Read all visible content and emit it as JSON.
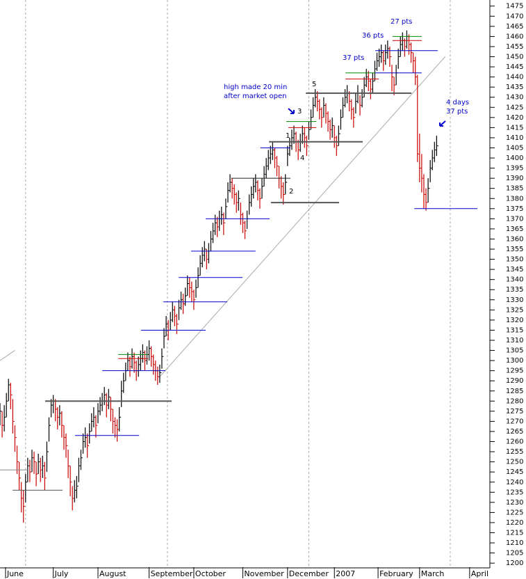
{
  "chart_data": {
    "type": "ohlc",
    "x": [
      0,
      1,
      2,
      3,
      4,
      5,
      6,
      7,
      8,
      9,
      10,
      11,
      12,
      13,
      14,
      15,
      16,
      17,
      18,
      19,
      20,
      21,
      22,
      23,
      24,
      25,
      26,
      27,
      28,
      29,
      30,
      31,
      32,
      33,
      34,
      35,
      36,
      37,
      38,
      39,
      40,
      41,
      42,
      43,
      44,
      45,
      46,
      47,
      48,
      49,
      50,
      51,
      52,
      53,
      54,
      55,
      56,
      57,
      58,
      59,
      60,
      61,
      62,
      63,
      64,
      65,
      66,
      67,
      68,
      69,
      70,
      71,
      72,
      73,
      74,
      75,
      76,
      77,
      78,
      79,
      80,
      81,
      82,
      83,
      84,
      85,
      86,
      87,
      88,
      89,
      90,
      91,
      92,
      93,
      94,
      95,
      96,
      97,
      98,
      99,
      100,
      101,
      102,
      103,
      104,
      105,
      106,
      107,
      108,
      109,
      110,
      111,
      112,
      113,
      114,
      115,
      116,
      117,
      118,
      119,
      120,
      121,
      122,
      123,
      124,
      125,
      126,
      127,
      128,
      129,
      130,
      131,
      132,
      133,
      134,
      135,
      136,
      137,
      138,
      139,
      140,
      141,
      142,
      143,
      144,
      145,
      146,
      147,
      148,
      149,
      150,
      151,
      152,
      153,
      154,
      155,
      156,
      157,
      158,
      159,
      160,
      161,
      162,
      163,
      164,
      165,
      166,
      167,
      168,
      169,
      170,
      171,
      172,
      173,
      174,
      175,
      176,
      177,
      178,
      179,
      180,
      181,
      182,
      183,
      184,
      185,
      186,
      187,
      188,
      189,
      190,
      191,
      192,
      193,
      194,
      195,
      196,
      197,
      198,
      199,
      200,
      201,
      202,
      203,
      204,
      205
    ],
    "high": [
      1279,
      1275,
      1278,
      1284,
      1291,
      1289,
      1281,
      1268,
      1258,
      1250,
      1240,
      1236,
      1244,
      1252,
      1251,
      1256,
      1255,
      1250,
      1254,
      1252,
      1253,
      1250,
      1260,
      1272,
      1281,
      1283,
      1281,
      1277,
      1278,
      1275,
      1268,
      1264,
      1256,
      1248,
      1238,
      1241,
      1243,
      1252,
      1256,
      1264,
      1267,
      1264,
      1269,
      1274,
      1277,
      1273,
      1279,
      1282,
      1284,
      1287,
      1284,
      1286,
      1282,
      1276,
      1272,
      1271,
      1277,
      1290,
      1294,
      1299,
      1304,
      1302,
      1306,
      1304,
      1300,
      1302,
      1305,
      1308,
      1305,
      1307,
      1310,
      1307,
      1303,
      1300,
      1297,
      1298,
      1306,
      1316,
      1322,
      1320,
      1324,
      1329,
      1327,
      1323,
      1330,
      1334,
      1333,
      1336,
      1342,
      1341,
      1339,
      1335,
      1340,
      1346,
      1352,
      1356,
      1359,
      1355,
      1358,
      1364,
      1368,
      1372,
      1371,
      1374,
      1376,
      1373,
      1380,
      1388,
      1392,
      1390,
      1387,
      1383,
      1384,
      1378,
      1373,
      1369,
      1374,
      1382,
      1386,
      1390,
      1392,
      1389,
      1385,
      1390,
      1396,
      1400,
      1404,
      1406,
      1408,
      1405,
      1401,
      1396,
      1391,
      1388,
      1392,
      1406,
      1410,
      1414,
      1416,
      1413,
      1409,
      1412,
      1416,
      1415,
      1411,
      1418,
      1424,
      1430,
      1434,
      1433,
      1429,
      1425,
      1430,
      1427,
      1423,
      1419,
      1420,
      1416,
      1411,
      1416,
      1424,
      1430,
      1434,
      1436,
      1433,
      1429,
      1425,
      1432,
      1436,
      1431,
      1434,
      1440,
      1444,
      1443,
      1439,
      1442,
      1448,
      1452,
      1454,
      1456,
      1453,
      1456,
      1458,
      1455,
      1446,
      1440,
      1446,
      1454,
      1460,
      1462,
      1459,
      1463,
      1461,
      1457,
      1452,
      1450,
      1441,
      1412,
      1402,
      1392,
      1385,
      1390,
      1399,
      1404,
      1408,
      1411
    ],
    "low": [
      1268,
      1262,
      1265,
      1272,
      1280,
      1276,
      1264,
      1255,
      1244,
      1236,
      1225,
      1220,
      1230,
      1240,
      1240,
      1245,
      1244,
      1238,
      1244,
      1240,
      1242,
      1236,
      1245,
      1260,
      1272,
      1274,
      1270,
      1266,
      1268,
      1262,
      1256,
      1252,
      1242,
      1233,
      1226,
      1230,
      1232,
      1240,
      1246,
      1254,
      1257,
      1252,
      1259,
      1265,
      1267,
      1262,
      1269,
      1273,
      1275,
      1278,
      1272,
      1276,
      1270,
      1264,
      1262,
      1260,
      1265,
      1277,
      1284,
      1290,
      1295,
      1292,
      1296,
      1294,
      1290,
      1292,
      1295,
      1299,
      1295,
      1298,
      1300,
      1297,
      1293,
      1290,
      1288,
      1289,
      1296,
      1306,
      1312,
      1310,
      1315,
      1319,
      1317,
      1313,
      1320,
      1325,
      1323,
      1327,
      1332,
      1331,
      1329,
      1325,
      1331,
      1336,
      1342,
      1346,
      1349,
      1345,
      1348,
      1354,
      1358,
      1362,
      1361,
      1364,
      1367,
      1362,
      1370,
      1378,
      1383,
      1380,
      1377,
      1373,
      1374,
      1367,
      1363,
      1360,
      1365,
      1372,
      1376,
      1380,
      1383,
      1379,
      1375,
      1380,
      1386,
      1390,
      1394,
      1397,
      1399,
      1395,
      1391,
      1385,
      1380,
      1377,
      1382,
      1396,
      1401,
      1404,
      1407,
      1403,
      1399,
      1403,
      1407,
      1405,
      1401,
      1409,
      1414,
      1420,
      1425,
      1423,
      1419,
      1415,
      1420,
      1417,
      1413,
      1409,
      1410,
      1405,
      1401,
      1406,
      1414,
      1420,
      1425,
      1427,
      1423,
      1419,
      1415,
      1422,
      1427,
      1421,
      1425,
      1430,
      1435,
      1433,
      1429,
      1432,
      1438,
      1443,
      1445,
      1447,
      1443,
      1446,
      1449,
      1445,
      1433,
      1431,
      1436,
      1444,
      1450,
      1453,
      1450,
      1454,
      1451,
      1447,
      1442,
      1436,
      1398,
      1388,
      1383,
      1375,
      1374,
      1378,
      1388,
      1394,
      1398,
      1401
    ],
    "close": [
      1275,
      1268,
      1272,
      1280,
      1288,
      1283,
      1270,
      1262,
      1250,
      1242,
      1232,
      1228,
      1240,
      1248,
      1245,
      1252,
      1250,
      1244,
      1250,
      1246,
      1248,
      1242,
      1255,
      1268,
      1278,
      1280,
      1276,
      1272,
      1274,
      1268,
      1262,
      1258,
      1248,
      1240,
      1232,
      1236,
      1238,
      1248,
      1252,
      1260,
      1262,
      1258,
      1265,
      1270,
      1272,
      1268,
      1275,
      1278,
      1280,
      1283,
      1278,
      1282,
      1276,
      1270,
      1268,
      1266,
      1272,
      1285,
      1290,
      1295,
      1300,
      1297,
      1302,
      1299,
      1295,
      1298,
      1301,
      1304,
      1300,
      1303,
      1306,
      1302,
      1298,
      1295,
      1292,
      1294,
      1302,
      1312,
      1318,
      1315,
      1320,
      1325,
      1322,
      1318,
      1326,
      1330,
      1328,
      1332,
      1338,
      1336,
      1334,
      1330,
      1336,
      1342,
      1348,
      1352,
      1355,
      1350,
      1354,
      1360,
      1364,
      1368,
      1366,
      1370,
      1372,
      1368,
      1376,
      1384,
      1388,
      1385,
      1382,
      1378,
      1380,
      1372,
      1368,
      1364,
      1370,
      1378,
      1382,
      1386,
      1388,
      1384,
      1380,
      1386,
      1392,
      1396,
      1400,
      1402,
      1404,
      1400,
      1396,
      1390,
      1386,
      1382,
      1388,
      1402,
      1406,
      1410,
      1412,
      1408,
      1404,
      1408,
      1412,
      1410,
      1406,
      1414,
      1420,
      1426,
      1430,
      1428,
      1424,
      1420,
      1426,
      1422,
      1418,
      1414,
      1416,
      1410,
      1406,
      1412,
      1420,
      1426,
      1430,
      1432,
      1428,
      1424,
      1420,
      1428,
      1432,
      1426,
      1430,
      1436,
      1440,
      1438,
      1434,
      1438,
      1444,
      1448,
      1450,
      1452,
      1448,
      1452,
      1454,
      1450,
      1440,
      1436,
      1442,
      1450,
      1456,
      1458,
      1455,
      1460,
      1456,
      1452,
      1448,
      1440,
      1402,
      1395,
      1390,
      1382,
      1378,
      1385,
      1395,
      1400,
      1404,
      1406
    ],
    "colors": {
      "up": "#000000",
      "down": "#cc0000"
    },
    "xlim": [
      0,
      230
    ],
    "xticks": [
      {
        "value": 2.6,
        "label": "June"
      },
      {
        "value": 25,
        "label": "July"
      },
      {
        "value": 46,
        "label": "August"
      },
      {
        "value": 70,
        "label": "September"
      },
      {
        "value": 91,
        "label": "October"
      },
      {
        "value": 114,
        "label": "November"
      },
      {
        "value": 135,
        "label": "December"
      },
      {
        "value": 157,
        "label": "2007"
      },
      {
        "value": 177.5,
        "label": "February"
      },
      {
        "value": 197,
        "label": "March"
      },
      {
        "value": 220.5,
        "label": "April"
      }
    ],
    "xgrid": [
      12,
      78.6,
      145,
      211.4
    ],
    "ylim": [
      1198,
      1478
    ],
    "yticks": [
      1200,
      1205,
      1210,
      1215,
      1220,
      1225,
      1230,
      1235,
      1240,
      1245,
      1250,
      1255,
      1260,
      1265,
      1270,
      1275,
      1280,
      1285,
      1290,
      1295,
      1300,
      1305,
      1310,
      1315,
      1320,
      1325,
      1330,
      1335,
      1340,
      1345,
      1350,
      1355,
      1360,
      1365,
      1370,
      1375,
      1380,
      1385,
      1390,
      1395,
      1400,
      1405,
      1410,
      1415,
      1420,
      1425,
      1430,
      1435,
      1440,
      1445,
      1450,
      1455,
      1460,
      1465,
      1470,
      1475
    ],
    "levels": [
      {
        "value": 1280,
        "from": 21.2,
        "to": 80.6,
        "color": "#555555",
        "width": 2
      },
      {
        "value": 1236,
        "from": 5.9,
        "to": 29.4,
        "color": "#555555",
        "width": 1
      },
      {
        "value": 1246,
        "from": 0,
        "to": 13,
        "color": "#888888",
        "width": 1
      },
      {
        "value": 1263,
        "from": 35.2,
        "to": 65.3,
        "color": "#0000cc",
        "width": 1
      },
      {
        "value": 1303,
        "from": 55.5,
        "to": 69.5,
        "color": "#008800",
        "width": 1
      },
      {
        "value": 1301,
        "from": 55.5,
        "to": 69.5,
        "color": "#cc0000",
        "width": 1
      },
      {
        "value": 1295,
        "from": 48,
        "to": 77.7,
        "color": "#0000cc",
        "width": 1
      },
      {
        "value": 1315,
        "from": 66.2,
        "to": 96.6,
        "color": "#0000cc",
        "width": 1
      },
      {
        "value": 1329,
        "from": 76.7,
        "to": 106.7,
        "color": "#0000cc",
        "width": 1
      },
      {
        "value": 1341,
        "from": 83.9,
        "to": 113.9,
        "color": "#0000cc",
        "width": 1
      },
      {
        "value": 1354,
        "from": 89.7,
        "to": 120,
        "color": "#0000cc",
        "width": 1
      },
      {
        "value": 1370,
        "from": 96.6,
        "to": 126.6,
        "color": "#0000cc",
        "width": 1
      },
      {
        "value": 1378,
        "from": 127.2,
        "to": 159.2,
        "color": "#555555",
        "width": 2
      },
      {
        "value": 1390,
        "from": 108.6,
        "to": 136.4,
        "color": "#222222",
        "width": 1
      },
      {
        "value": 1405,
        "from": 122.3,
        "to": 136.4,
        "color": "#0000cc",
        "width": 1
      },
      {
        "value": 1408,
        "from": 126.3,
        "to": 170.3,
        "color": "#555555",
        "width": 2
      },
      {
        "value": 1418,
        "from": 134.4,
        "to": 148.5,
        "color": "#008800",
        "width": 1
      },
      {
        "value": 1415,
        "from": 135.4,
        "to": 148.5,
        "color": "#cc0000",
        "width": 1
      },
      {
        "value": 1432,
        "from": 143.6,
        "to": 193.2,
        "color": "#555555",
        "width": 2
      },
      {
        "value": 1442,
        "from": 176.2,
        "to": 198,
        "color": "#0000cc",
        "width": 1
      },
      {
        "value": 1439,
        "from": 162.2,
        "to": 177.8,
        "color": "#cc0000",
        "width": 1
      },
      {
        "value": 1442,
        "from": 162.2,
        "to": 176.2,
        "color": "#008800",
        "width": 1
      },
      {
        "value": 1453,
        "from": 176.2,
        "to": 205.5,
        "color": "#0000cc",
        "width": 1
      },
      {
        "value": 1460,
        "from": 184.3,
        "to": 198,
        "color": "#008800",
        "width": 1
      },
      {
        "value": 1458,
        "from": 184.3,
        "to": 198,
        "color": "#cc0000",
        "width": 1
      },
      {
        "value": 1375,
        "from": 194.5,
        "to": 224.1,
        "color": "#0000cc",
        "width": 1
      }
    ],
    "trendlines": [
      {
        "x": [
          75,
          209
        ],
        "y": [
          1292,
          1450
        ]
      },
      {
        "x": [
          0,
          7
        ],
        "y": [
          1300,
          1305
        ]
      }
    ],
    "annotations": [
      {
        "text": "27 pts",
        "color": "#0000cc"
      },
      {
        "text": "36 pts",
        "color": "#0000cc"
      },
      {
        "text": "37 pts",
        "color": "#0000cc"
      },
      {
        "text": "high made 20 min",
        "color": "#0000cc"
      },
      {
        "text": "after market open",
        "color": "#0000cc"
      },
      {
        "text": "4 days",
        "color": "#0000cc"
      },
      {
        "text": "37 pts",
        "color": "#0000cc"
      },
      {
        "text": "5",
        "color": "#000000"
      },
      {
        "text": "3",
        "color": "#000000"
      },
      {
        "text": "1",
        "color": "#000000"
      },
      {
        "text": "4",
        "color": "#000000"
      },
      {
        "text": "2",
        "color": "#000000"
      }
    ]
  }
}
